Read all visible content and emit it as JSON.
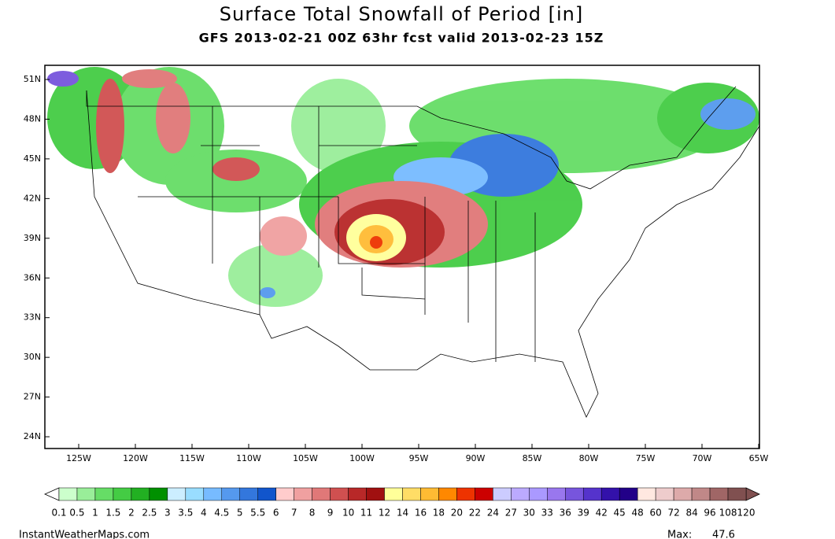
{
  "header": {
    "title": "Surface Total Snowfall of Period [in]",
    "subtitle": "GFS 2013-02-21 00Z 63hr fcst valid 2013-02-23 15Z"
  },
  "map": {
    "lat_labels": [
      "51N",
      "48N",
      "45N",
      "42N",
      "39N",
      "36N",
      "33N",
      "30N",
      "27N",
      "24N"
    ],
    "lon_labels": [
      "125W",
      "120W",
      "115W",
      "110W",
      "105W",
      "100W",
      "95W",
      "90W",
      "85W",
      "80W",
      "75W",
      "70W",
      "65W"
    ]
  },
  "colorbar": {
    "labels": [
      "0.1",
      "0.5",
      "1",
      "1.5",
      "2",
      "2.5",
      "3",
      "3.5",
      "4",
      "4.5",
      "5",
      "5.5",
      "6",
      "7",
      "8",
      "9",
      "10",
      "11",
      "12",
      "14",
      "16",
      "18",
      "20",
      "22",
      "24",
      "27",
      "30",
      "33",
      "36",
      "39",
      "42",
      "45",
      "48",
      "60",
      "72",
      "84",
      "96",
      "108",
      "120"
    ],
    "colors": [
      "#ccffcc",
      "#99ee99",
      "#66dd66",
      "#44cc44",
      "#22b022",
      "#009000",
      "#cceeff",
      "#99ddff",
      "#77bbff",
      "#5599ee",
      "#3377dd",
      "#1155cc",
      "#ffcccc",
      "#f0a0a0",
      "#e07878",
      "#d05050",
      "#b82828",
      "#a01010",
      "#ffff99",
      "#ffdd66",
      "#ffbb33",
      "#ff8800",
      "#ee3300",
      "#cc0000",
      "#ccccff",
      "#bbaaff",
      "#aa99ff",
      "#9977ee",
      "#7755dd",
      "#5533cc",
      "#3311aa",
      "#220088",
      "#ffe8e0",
      "#eecccc",
      "#ddaaaa",
      "#c08888",
      "#a06666",
      "#805050"
    ],
    "below_color": "#ffffff",
    "above_color": "#805050"
  },
  "footer": {
    "source": "InstantWeatherMaps.com",
    "max_label": "Max:",
    "max_value": 47.6
  }
}
